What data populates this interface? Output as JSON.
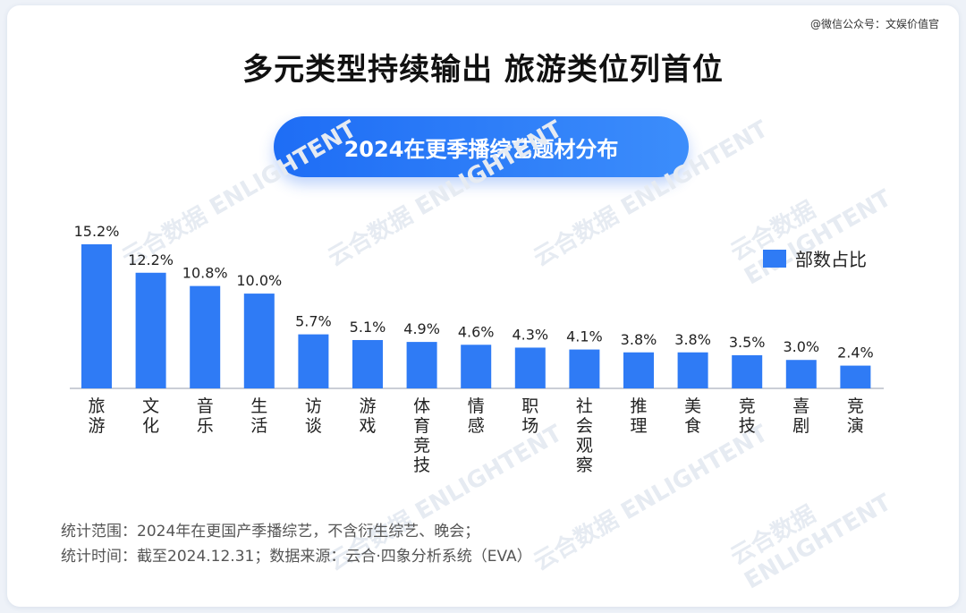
{
  "header": {
    "watermark": "@微信公众号：文娱价值官",
    "title": "多元类型持续输出 旅游类位列首位",
    "subtitle": "2024在更季播综艺题材分布"
  },
  "chart_data": {
    "type": "bar",
    "title": "2024在更季播综艺题材分布",
    "categories": [
      "旅游",
      "文化",
      "音乐",
      "生活",
      "访谈",
      "游戏",
      "体育竞技",
      "情感",
      "职场",
      "社会观察",
      "推理",
      "美食",
      "竞技",
      "喜剧",
      "竞演"
    ],
    "series": [
      {
        "name": "部数占比",
        "values": [
          15.2,
          12.2,
          10.8,
          10.0,
          5.7,
          5.1,
          4.9,
          4.6,
          4.3,
          4.1,
          3.8,
          3.8,
          3.5,
          3.0,
          2.4
        ],
        "labels": [
          "15.2%",
          "12.2%",
          "10.8%",
          "10.0%",
          "5.7%",
          "5.1%",
          "4.9%",
          "4.6%",
          "4.3%",
          "4.1%",
          "3.8%",
          "3.8%",
          "3.5%",
          "3.0%",
          "2.4%"
        ]
      }
    ],
    "ylim": [
      0,
      15.2
    ],
    "grid": false,
    "legend": "top-right",
    "colors": {
      "bar": "#2f7bf5",
      "axis": "#b8bec8",
      "label": "#222222"
    }
  },
  "legend": {
    "label": "部数占比"
  },
  "footer": {
    "line1": "统计范围：2024年在更国产季播综艺，不含衍生综艺、晚会；",
    "line2": "统计时间：截至2024.12.31；数据来源：云合·四象分析系统（EVA）"
  },
  "watermarks": [
    "云合数据 ENLIGHTENT"
  ]
}
